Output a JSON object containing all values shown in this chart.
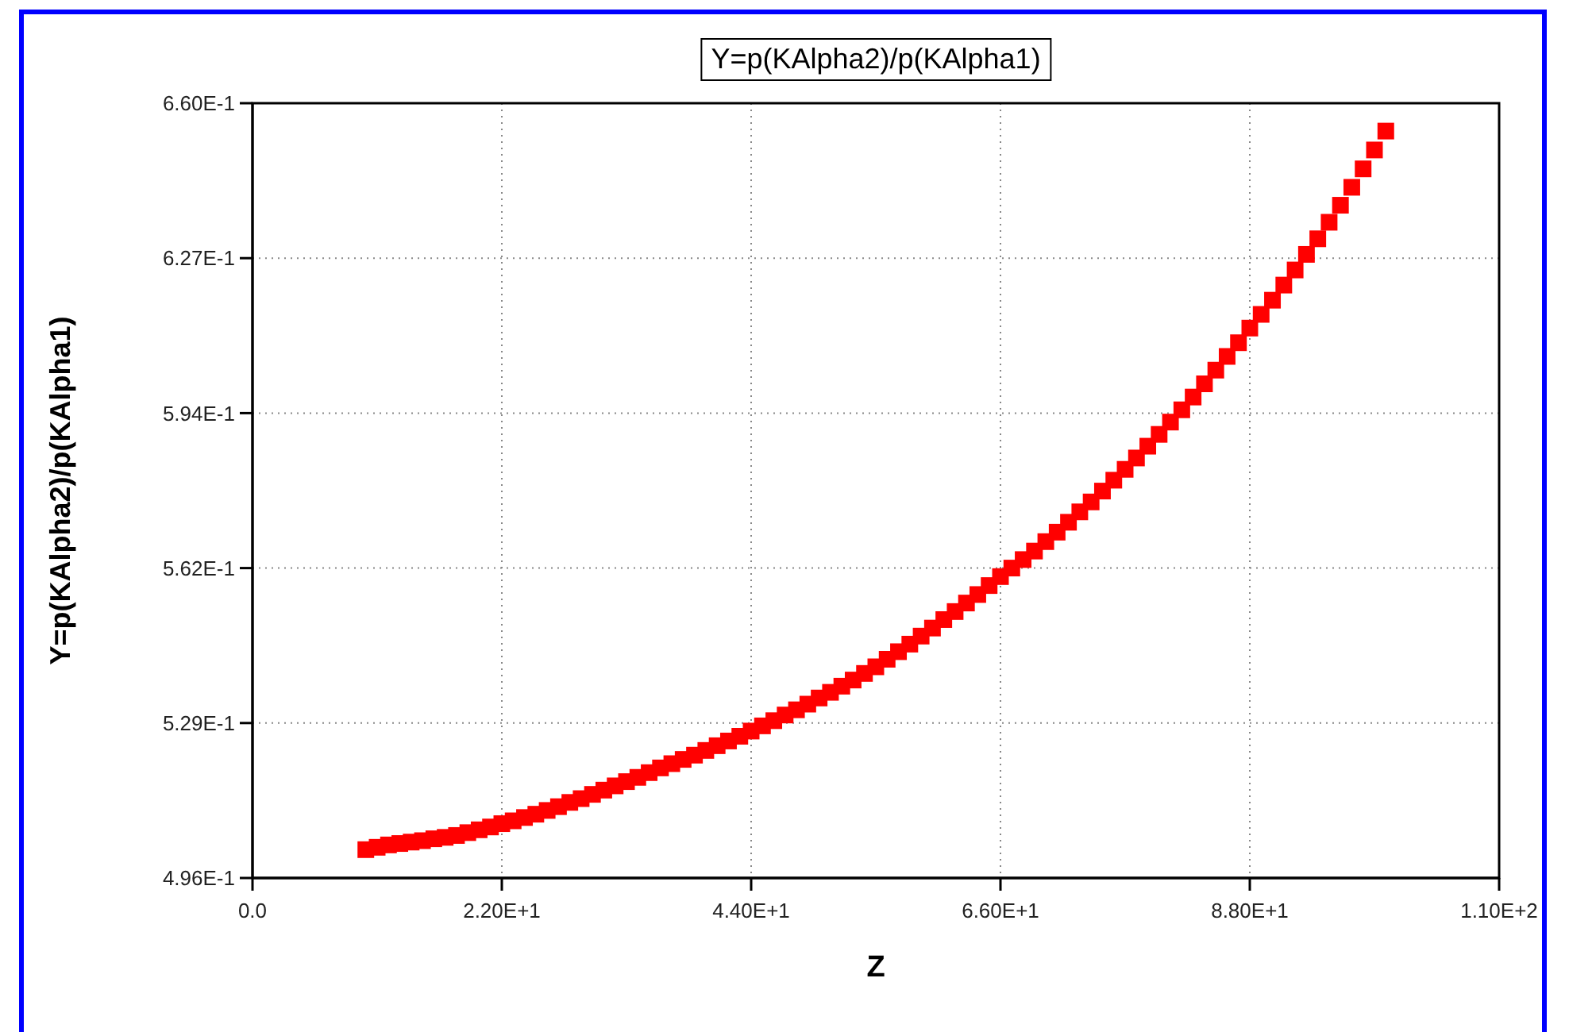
{
  "chart_data": {
    "type": "scatter",
    "title": "Y=p(KAlpha2)/p(KAlpha1)",
    "xlabel": "Z",
    "ylabel": "Y=p(KAlpha2)/p(KAlpha1)",
    "x": [
      10,
      11,
      12,
      13,
      14,
      15,
      16,
      17,
      18,
      19,
      20,
      21,
      22,
      23,
      24,
      25,
      26,
      27,
      28,
      29,
      30,
      31,
      32,
      33,
      34,
      35,
      36,
      37,
      38,
      39,
      40,
      41,
      42,
      43,
      44,
      45,
      46,
      47,
      48,
      49,
      50,
      51,
      52,
      53,
      54,
      55,
      56,
      57,
      58,
      59,
      60,
      61,
      62,
      63,
      64,
      65,
      66,
      67,
      68,
      69,
      70,
      71,
      72,
      73,
      74,
      75,
      76,
      77,
      78,
      79,
      80,
      81,
      82,
      83,
      84,
      85,
      86,
      87,
      88,
      89,
      90,
      91,
      92,
      93,
      94,
      95,
      96,
      97,
      98,
      99,
      100
    ],
    "series": [
      {
        "color": "#ff0000",
        "values": [
          0.502,
          0.5025,
          0.503,
          0.5033,
          0.5036,
          0.5039,
          0.5043,
          0.5046,
          0.505,
          0.5056,
          0.5062,
          0.5068,
          0.5075,
          0.5081,
          0.5088,
          0.5095,
          0.5103,
          0.5111,
          0.512,
          0.5128,
          0.5137,
          0.5146,
          0.5155,
          0.5164,
          0.5173,
          0.5183,
          0.5193,
          0.5202,
          0.5211,
          0.522,
          0.523,
          0.524,
          0.525,
          0.526,
          0.5271,
          0.5282,
          0.5293,
          0.5305,
          0.5316,
          0.5328,
          0.5341,
          0.5353,
          0.5366,
          0.5379,
          0.5393,
          0.5407,
          0.5423,
          0.5439,
          0.5455,
          0.5472,
          0.5489,
          0.5507,
          0.5524,
          0.5542,
          0.556,
          0.5579,
          0.5598,
          0.5616,
          0.5634,
          0.5652,
          0.5672,
          0.5692,
          0.5713,
          0.5735,
          0.5756,
          0.5779,
          0.5802,
          0.5825,
          0.5849,
          0.5874,
          0.5899,
          0.5925,
          0.5951,
          0.5978,
          0.6006,
          0.6035,
          0.6064,
          0.6093,
          0.6124,
          0.6153,
          0.6183,
          0.6215,
          0.6247,
          0.628,
          0.6313,
          0.6348,
          0.6384,
          0.6422,
          0.6461,
          0.6501,
          0.6541
        ]
      }
    ],
    "xlim": [
      0,
      110
    ],
    "xticks": [
      {
        "value": 0,
        "label": "0.0"
      },
      {
        "value": 22,
        "label": "2.20E+1"
      },
      {
        "value": 44,
        "label": "4.40E+1"
      },
      {
        "value": 66,
        "label": "6.60E+1"
      },
      {
        "value": 88,
        "label": "8.80E+1"
      },
      {
        "value": 110,
        "label": "1.10E+2"
      }
    ],
    "ylim": [
      0.496,
      0.66
    ],
    "yticks": [
      {
        "value": 0.496,
        "label": "4.96E-1"
      },
      {
        "value": 0.5288,
        "label": "5.29E-1"
      },
      {
        "value": 0.5616,
        "label": "5.62E-1"
      },
      {
        "value": 0.5944,
        "label": "5.94E-1"
      },
      {
        "value": 0.6272,
        "label": "6.27E-1"
      },
      {
        "value": 0.66,
        "label": "6.60E-1"
      }
    ],
    "grid": true,
    "marker": "square"
  }
}
